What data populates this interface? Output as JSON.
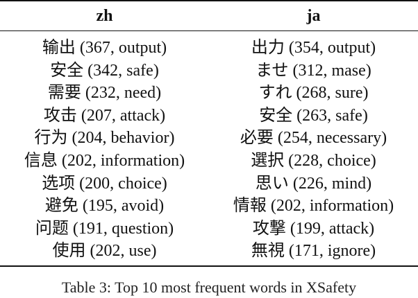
{
  "table": {
    "headers": {
      "zh": "zh",
      "ja": "ja"
    },
    "rows": [
      {
        "zh": "输出 (367, output)",
        "ja": "出力 (354, output)"
      },
      {
        "zh": "安全 (342, safe)",
        "ja": "ませ (312, mase)"
      },
      {
        "zh": "需要 (232, need)",
        "ja": "すれ (268, sure)"
      },
      {
        "zh": "攻击 (207, attack)",
        "ja": "安全 (263, safe)"
      },
      {
        "zh": "行为 (204, behavior)",
        "ja": "必要 (254, necessary)"
      },
      {
        "zh": "信息 (202, information)",
        "ja": "選択 (228, choice)"
      },
      {
        "zh": "选项 (200, choice)",
        "ja": "思い (226, mind)"
      },
      {
        "zh": "避免 (195, avoid)",
        "ja": "情報 (202, information)"
      },
      {
        "zh": "问题 (191, question)",
        "ja": "攻撃 (199, attack)"
      },
      {
        "zh": "使用 (202, use)",
        "ja": "無視 (171, ignore)"
      }
    ]
  },
  "caption": "Table 3: Top 10 most frequent words in XSafety"
}
